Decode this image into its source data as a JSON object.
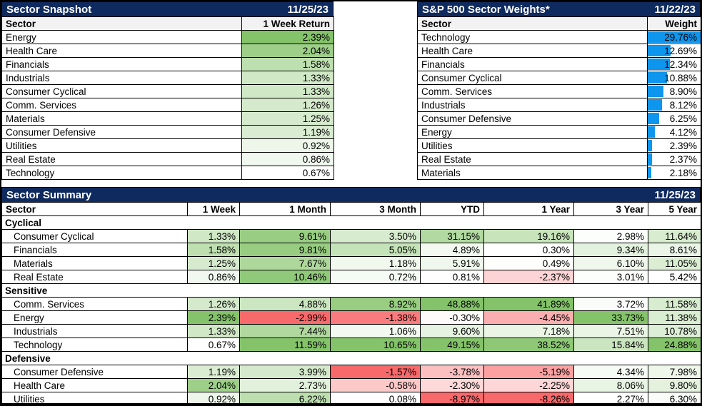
{
  "colors": {
    "navy": "#0F2A5E",
    "header_gray": "#F2F2F2",
    "green_max": "#84C36A",
    "red_max": "#F8696B",
    "bar_blue": "#0E95EE",
    "border_black": "#000000"
  },
  "snapshot": {
    "title": "Sector Snapshot",
    "date": "11/25/23",
    "col_sector": "Sector",
    "col_value": "1 Week Return",
    "rows": [
      {
        "sector": "Energy",
        "value": "2.39%"
      },
      {
        "sector": "Health Care",
        "value": "2.04%"
      },
      {
        "sector": "Financials",
        "value": "1.58%"
      },
      {
        "sector": "Industrials",
        "value": "1.33%"
      },
      {
        "sector": "Consumer Cyclical",
        "value": "1.33%"
      },
      {
        "sector": "Comm. Services",
        "value": "1.26%"
      },
      {
        "sector": "Materials",
        "value": "1.25%"
      },
      {
        "sector": "Consumer Defensive",
        "value": "1.19%"
      },
      {
        "sector": "Utilities",
        "value": "0.92%"
      },
      {
        "sector": "Real Estate",
        "value": "0.86%"
      },
      {
        "sector": "Technology",
        "value": "0.67%"
      }
    ]
  },
  "weights": {
    "title": "S&P 500 Sector Weights*",
    "date": "11/22/23",
    "col_sector": "Sector",
    "col_value": "Weight",
    "rows": [
      {
        "sector": "Technology",
        "value": "29.76%"
      },
      {
        "sector": "Health Care",
        "value": "12.69%"
      },
      {
        "sector": "Financials",
        "value": "12.34%"
      },
      {
        "sector": "Consumer Cyclical",
        "value": "10.88%"
      },
      {
        "sector": "Comm. Services",
        "value": "8.90%"
      },
      {
        "sector": "Industrials",
        "value": "8.12%"
      },
      {
        "sector": "Consumer Defensive",
        "value": "6.25%"
      },
      {
        "sector": "Energy",
        "value": "4.12%"
      },
      {
        "sector": "Utilities",
        "value": "2.39%"
      },
      {
        "sector": "Real Estate",
        "value": "2.37%"
      },
      {
        "sector": "Materials",
        "value": "2.18%"
      }
    ]
  },
  "summary": {
    "title": "Sector Summary",
    "date": "11/25/23",
    "columns": [
      "Sector",
      "1 Week",
      "1 Month",
      "3 Month",
      "YTD",
      "1 Year",
      "3 Year",
      "5 Year"
    ],
    "groups": [
      {
        "name": "Cyclical",
        "rows": [
          {
            "sector": "Consumer Cyclical",
            "values": [
              "1.33%",
              "9.61%",
              "3.50%",
              "31.15%",
              "19.16%",
              "2.98%",
              "11.64%"
            ]
          },
          {
            "sector": "Financials",
            "values": [
              "1.58%",
              "9.81%",
              "5.05%",
              "4.89%",
              "0.30%",
              "9.34%",
              "8.61%"
            ]
          },
          {
            "sector": "Materials",
            "values": [
              "1.25%",
              "7.67%",
              "1.18%",
              "5.91%",
              "0.49%",
              "6.10%",
              "11.05%"
            ]
          },
          {
            "sector": "Real Estate",
            "values": [
              "0.86%",
              "10.46%",
              "0.72%",
              "0.81%",
              "-2.37%",
              "3.01%",
              "5.42%"
            ]
          }
        ]
      },
      {
        "name": "Sensitive",
        "rows": [
          {
            "sector": "Comm. Services",
            "values": [
              "1.26%",
              "4.88%",
              "8.92%",
              "48.88%",
              "41.89%",
              "3.72%",
              "11.58%"
            ]
          },
          {
            "sector": "Energy",
            "values": [
              "2.39%",
              "-2.99%",
              "-1.38%",
              "-0.30%",
              "-4.45%",
              "33.73%",
              "11.38%"
            ]
          },
          {
            "sector": "Industrials",
            "values": [
              "1.33%",
              "7.44%",
              "1.06%",
              "9.60%",
              "7.18%",
              "7.51%",
              "10.78%"
            ]
          },
          {
            "sector": "Technology",
            "values": [
              "0.67%",
              "11.59%",
              "10.65%",
              "49.15%",
              "38.52%",
              "15.84%",
              "24.88%"
            ]
          }
        ]
      },
      {
        "name": "Defensive",
        "rows": [
          {
            "sector": "Consumer Defensive",
            "values": [
              "1.19%",
              "3.99%",
              "-1.57%",
              "-3.78%",
              "-5.19%",
              "4.34%",
              "7.98%"
            ]
          },
          {
            "sector": "Health Care",
            "values": [
              "2.04%",
              "2.73%",
              "-0.58%",
              "-2.30%",
              "-2.25%",
              "8.06%",
              "9.80%"
            ]
          },
          {
            "sector": "Utilities",
            "values": [
              "0.92%",
              "6.22%",
              "0.08%",
              "-8.97%",
              "-8.26%",
              "2.27%",
              "6.30%"
            ]
          }
        ]
      }
    ]
  }
}
